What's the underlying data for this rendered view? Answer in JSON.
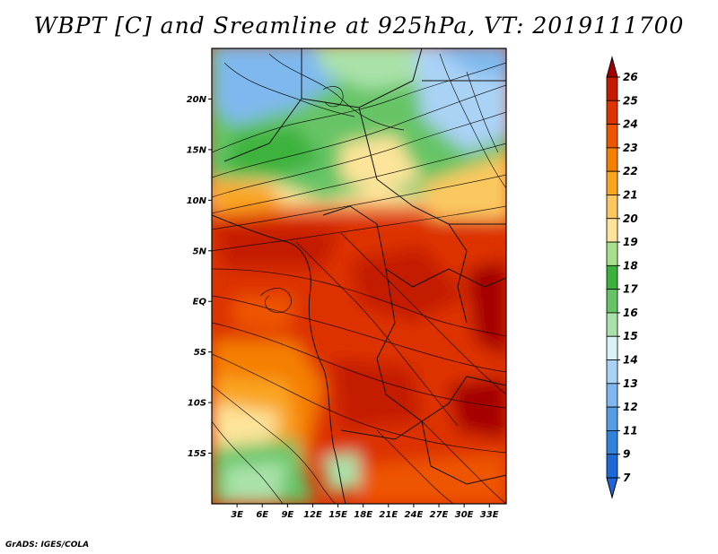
{
  "title": "WBPT [C] and Sreamline at 925hPa, VT: 2019111700",
  "map": {
    "lat_labels": [
      "20N",
      "15N",
      "10N",
      "5N",
      "EQ",
      "5S",
      "10S",
      "15S"
    ],
    "lat_values": [
      20,
      15,
      10,
      5,
      0,
      -5,
      -10,
      -15
    ],
    "lon_labels": [
      "3E",
      "6E",
      "9E",
      "12E",
      "15E",
      "18E",
      "21E",
      "24E",
      "27E",
      "30E",
      "33E"
    ],
    "lon_values": [
      3,
      6,
      9,
      12,
      15,
      18,
      21,
      24,
      27,
      30,
      33
    ],
    "lat_range": [
      -20,
      25
    ],
    "lon_range": [
      0,
      35
    ]
  },
  "colorbar": {
    "labels": [
      "26",
      "25",
      "24",
      "23",
      "22",
      "21",
      "20",
      "19",
      "18",
      "17",
      "16",
      "15",
      "14",
      "13",
      "12",
      "11",
      "9",
      "7"
    ],
    "colors": [
      "#a50000",
      "#c41a00",
      "#dd3300",
      "#ee5500",
      "#f57f00",
      "#f9a520",
      "#fbc860",
      "#fde49a",
      "#a6e08a",
      "#3cb23c",
      "#66c466",
      "#a9e2a9",
      "#daf1f8",
      "#aad2f5",
      "#7fb8ee",
      "#569ce3",
      "#3182db",
      "#1b68d6",
      "#0d48c5"
    ],
    "top_color": "#a50000",
    "bottom_color": "#1e64d8"
  },
  "credit": "GrADS: IGES/COLA"
}
